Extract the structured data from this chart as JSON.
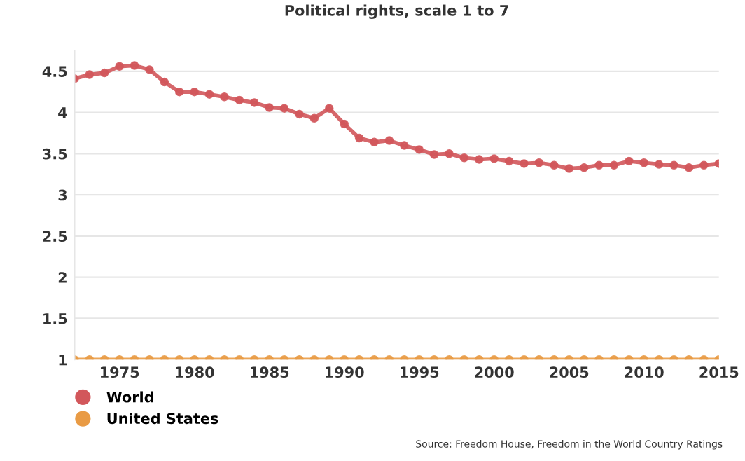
{
  "chart_data": {
    "type": "line",
    "title": "Political rights, scale 1 to 7",
    "x": [
      1972,
      1973,
      1974,
      1975,
      1976,
      1977,
      1978,
      1979,
      1980,
      1981,
      1982,
      1983,
      1984,
      1985,
      1986,
      1987,
      1988,
      1989,
      1990,
      1991,
      1992,
      1993,
      1994,
      1995,
      1996,
      1997,
      1998,
      1999,
      2000,
      2001,
      2002,
      2003,
      2004,
      2005,
      2006,
      2007,
      2008,
      2009,
      2010,
      2011,
      2012,
      2013,
      2014,
      2015
    ],
    "series": [
      {
        "name": "World",
        "color": "#d2575b",
        "values": [
          4.41,
          4.46,
          4.48,
          4.56,
          4.57,
          4.52,
          4.37,
          4.25,
          4.25,
          4.22,
          4.19,
          4.15,
          4.12,
          4.06,
          4.05,
          3.98,
          3.93,
          4.05,
          3.86,
          3.69,
          3.64,
          3.66,
          3.6,
          3.55,
          3.49,
          3.5,
          3.45,
          3.43,
          3.44,
          3.41,
          3.38,
          3.39,
          3.36,
          3.32,
          3.33,
          3.36,
          3.36,
          3.41,
          3.39,
          3.37,
          3.36,
          3.33,
          3.36,
          3.38
        ]
      },
      {
        "name": "United States",
        "color": "#e99b45",
        "values": [
          1,
          1,
          1,
          1,
          1,
          1,
          1,
          1,
          1,
          1,
          1,
          1,
          1,
          1,
          1,
          1,
          1,
          1,
          1,
          1,
          1,
          1,
          1,
          1,
          1,
          1,
          1,
          1,
          1,
          1,
          1,
          1,
          1,
          1,
          1,
          1,
          1,
          1,
          1,
          1,
          1,
          1,
          1,
          1
        ]
      }
    ],
    "xlim": [
      1972,
      2015
    ],
    "xticks": [
      1975,
      1980,
      1985,
      1990,
      1995,
      2000,
      2005,
      2010,
      2015
    ],
    "ylim": [
      1,
      4.75
    ],
    "yticks": [
      1,
      1.5,
      2,
      2.5,
      3,
      3.5,
      4,
      4.5
    ],
    "grid": "y",
    "legend": "bottom left",
    "marker": "circle",
    "line_style": "solid",
    "annotations": [
      "Source: Freedom House, Freedom in the World Country Ratings"
    ]
  }
}
